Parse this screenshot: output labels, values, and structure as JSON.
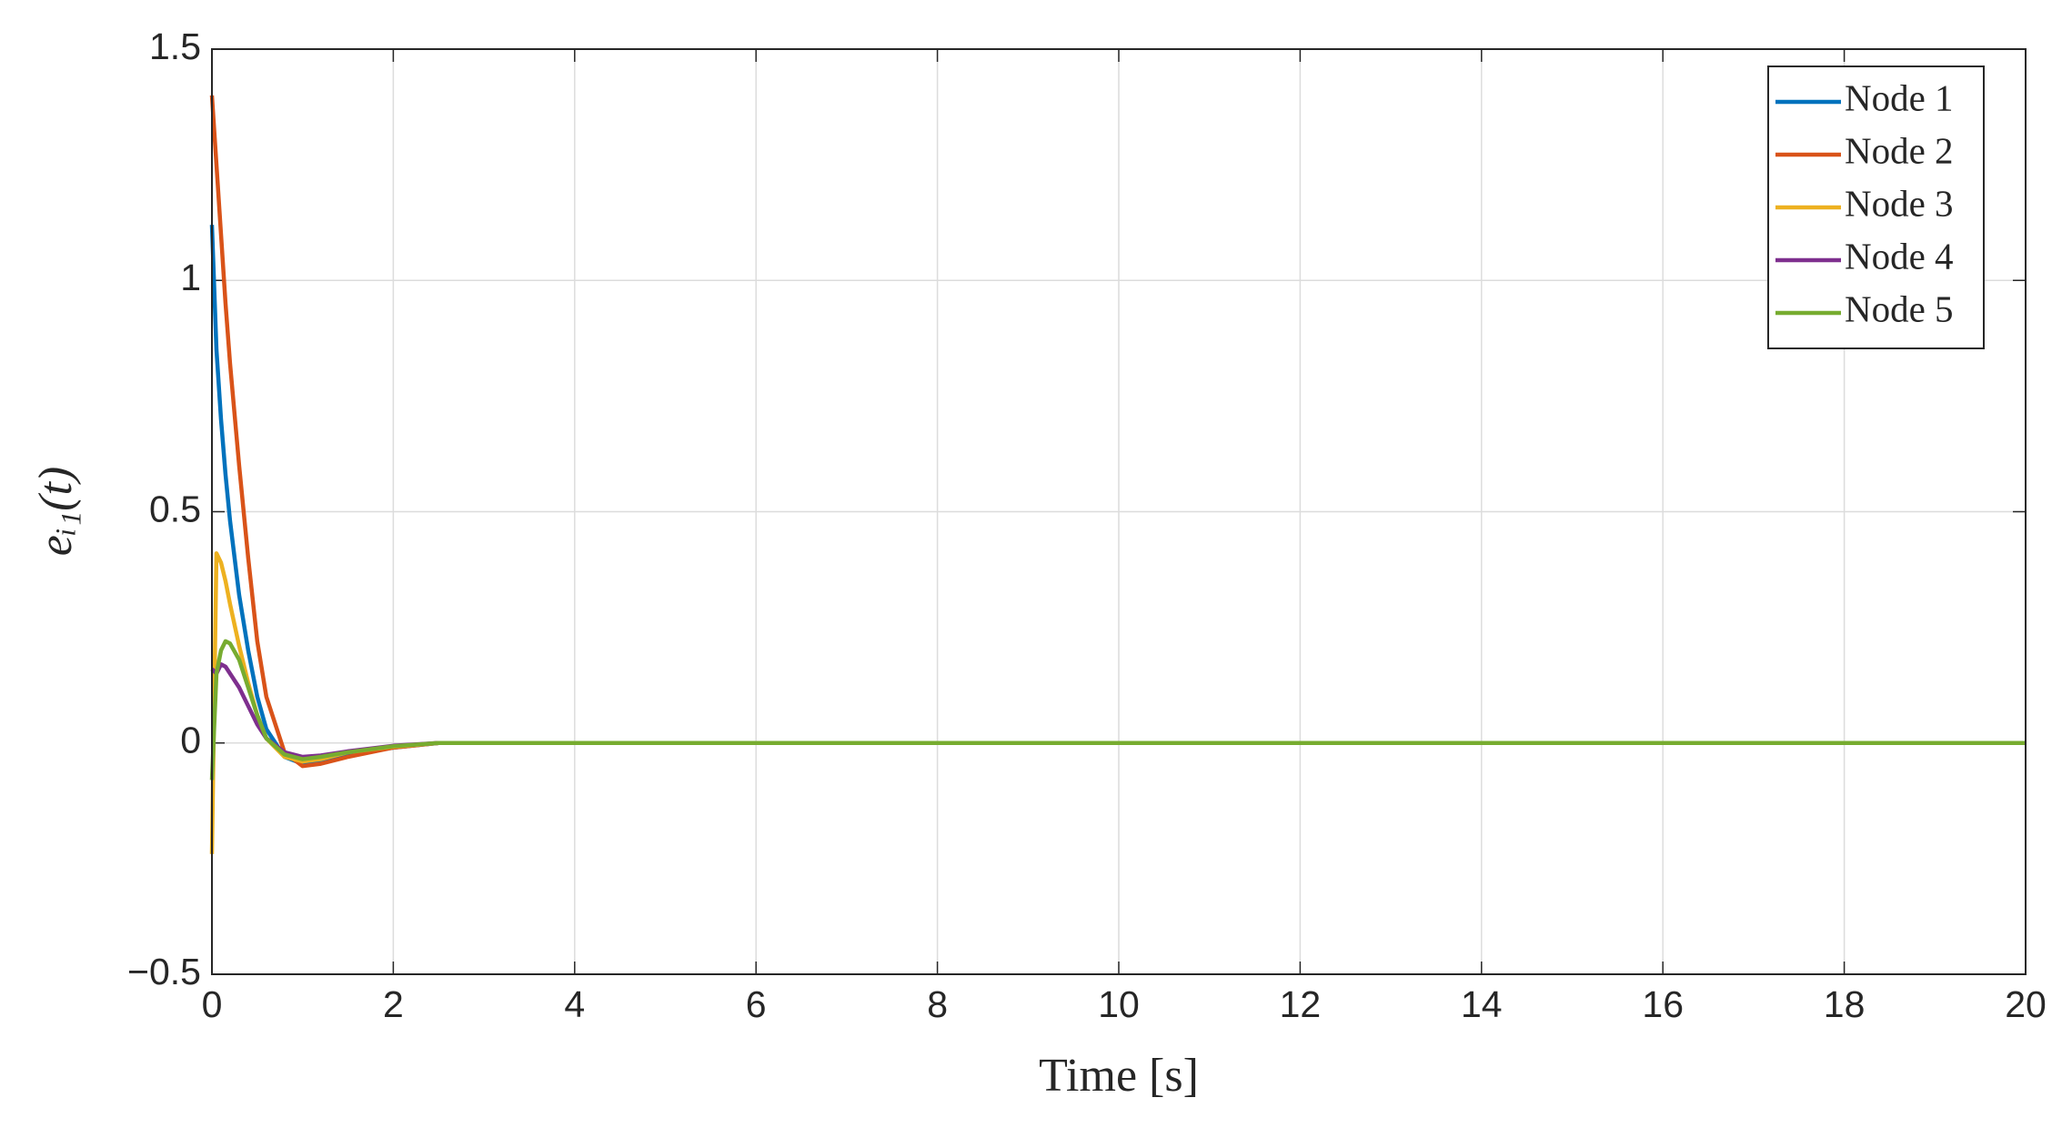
{
  "chart_data": {
    "type": "line",
    "xlabel": "Time [s]",
    "ylabel": "eᵢ₁(t)",
    "x": [
      0,
      0.05,
      0.1,
      0.15,
      0.2,
      0.3,
      0.4,
      0.5,
      0.6,
      0.8,
      1,
      1.2,
      1.5,
      2,
      2.5,
      3,
      5,
      10,
      15,
      20
    ],
    "series": [
      {
        "name": "Node 1",
        "color": "#0072bd",
        "values": [
          1.12,
          0.85,
          0.7,
          0.58,
          0.48,
          0.32,
          0.2,
          0.1,
          0.03,
          -0.03,
          -0.045,
          -0.04,
          -0.025,
          -0.01,
          0,
          0,
          0,
          0,
          0,
          0
        ]
      },
      {
        "name": "Node 2",
        "color": "#d95319",
        "values": [
          1.4,
          1.25,
          1.1,
          0.95,
          0.82,
          0.6,
          0.4,
          0.22,
          0.1,
          -0.02,
          -0.05,
          -0.045,
          -0.03,
          -0.01,
          0,
          0,
          0,
          0,
          0,
          0
        ]
      },
      {
        "name": "Node 3",
        "color": "#edb120",
        "values": [
          -0.24,
          0.41,
          0.39,
          0.35,
          0.3,
          0.21,
          0.13,
          0.06,
          0.01,
          -0.03,
          -0.04,
          -0.035,
          -0.02,
          -0.008,
          0,
          0,
          0,
          0,
          0,
          0
        ]
      },
      {
        "name": "Node 4",
        "color": "#7e2f8e",
        "values": [
          0.16,
          0.15,
          0.17,
          0.165,
          0.15,
          0.12,
          0.08,
          0.04,
          0.01,
          -0.02,
          -0.03,
          -0.027,
          -0.018,
          -0.006,
          0,
          0,
          0,
          0,
          0,
          0
        ]
      },
      {
        "name": "Node 5",
        "color": "#77ac30",
        "values": [
          -0.08,
          0.15,
          0.2,
          0.22,
          0.215,
          0.18,
          0.12,
          0.06,
          0.01,
          -0.025,
          -0.035,
          -0.03,
          -0.02,
          -0.007,
          0,
          0,
          0,
          0,
          0,
          0
        ]
      }
    ],
    "xlim": [
      0,
      20
    ],
    "xticks": [
      0,
      2,
      4,
      6,
      8,
      10,
      12,
      14,
      16,
      18,
      20
    ],
    "ylim": [
      -0.5,
      1.5
    ],
    "yticks": [
      {
        "value": -0.5,
        "label": "−0.5"
      },
      0,
      0.5,
      1,
      1.5
    ],
    "grid": true,
    "legend": "northeast"
  }
}
